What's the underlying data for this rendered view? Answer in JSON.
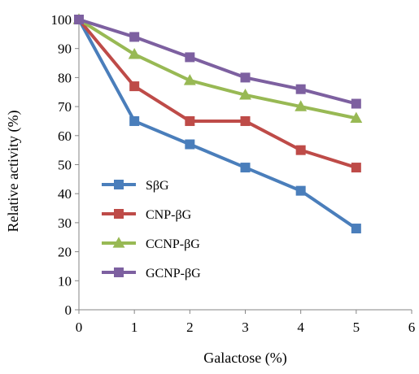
{
  "chart_data": {
    "type": "line",
    "title": "",
    "xlabel": "Galactose (%)",
    "ylabel": "Relative activity (%)",
    "xlim": [
      0,
      6
    ],
    "ylim": [
      0,
      100
    ],
    "xticks": [
      0,
      1,
      2,
      3,
      4,
      5,
      6
    ],
    "yticks": [
      0,
      10,
      20,
      30,
      40,
      50,
      60,
      70,
      80,
      90,
      100
    ],
    "grid": false,
    "legend_position": "left",
    "x": [
      0,
      1,
      2,
      3,
      4,
      5
    ],
    "series": [
      {
        "name": "SβG",
        "color": "#4a7ebb",
        "marker": "square",
        "values": [
          100,
          65,
          57,
          49,
          41,
          28
        ]
      },
      {
        "name": "CNP-βG",
        "color": "#be4b48",
        "marker": "square",
        "values": [
          100,
          77,
          65,
          65,
          55,
          49
        ]
      },
      {
        "name": "CCNP-βG",
        "color": "#98b954",
        "marker": "triangle",
        "values": [
          100,
          88,
          79,
          74,
          70,
          66
        ]
      },
      {
        "name": "GCNP-βG",
        "color": "#7d60a0",
        "marker": "square",
        "values": [
          100,
          94,
          87,
          80,
          76,
          71
        ]
      }
    ]
  }
}
